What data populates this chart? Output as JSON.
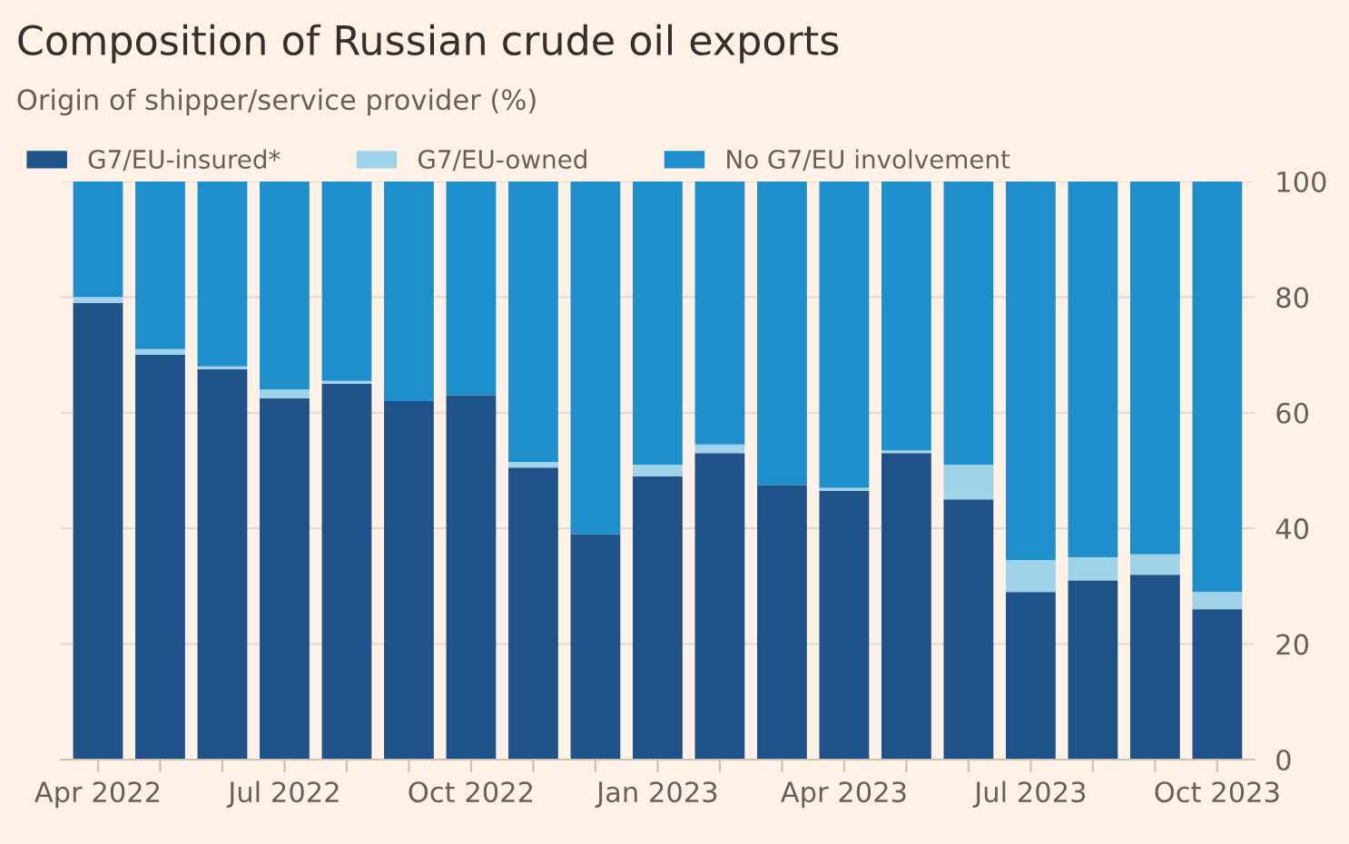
{
  "chart_data": {
    "type": "bar",
    "title": "Composition of Russian crude oil exports",
    "subtitle": "Origin of shipper/service provider (%)",
    "categories": [
      "Apr 2022",
      null,
      null,
      "Jul 2022",
      null,
      null,
      "Oct 2022",
      null,
      null,
      "Jan 2023",
      null,
      null,
      "Apr 2023",
      null,
      null,
      "Jul 2023",
      null,
      null,
      "Oct 2023"
    ],
    "stacked": true,
    "series": [
      {
        "name": "G7/EU-insured*",
        "color": "#1f5288",
        "values": [
          79,
          70,
          67.5,
          62.5,
          65,
          62,
          63,
          50.5,
          39,
          49,
          53,
          47.5,
          46.5,
          53,
          45,
          29,
          31,
          32,
          26
        ]
      },
      {
        "name": "G7/EU-owned",
        "color": "#9fd3ea",
        "values": [
          1,
          1,
          0.5,
          1.5,
          0.5,
          0,
          0,
          1,
          0,
          2,
          1.5,
          0,
          0.5,
          0.5,
          6,
          5.5,
          4,
          3.5,
          3
        ]
      },
      {
        "name": "No G7/EU involvement",
        "color": "#1f8fcc",
        "values": [
          20,
          29,
          32,
          36,
          34.5,
          38,
          37,
          48.5,
          61,
          49,
          45.5,
          52.5,
          53,
          46.5,
          49,
          65.5,
          65,
          64.5,
          71
        ]
      }
    ],
    "ylim": [
      0,
      100
    ],
    "yticks": [
      0,
      20,
      40,
      60,
      80,
      100
    ],
    "grid": "y",
    "legend": "top left"
  }
}
